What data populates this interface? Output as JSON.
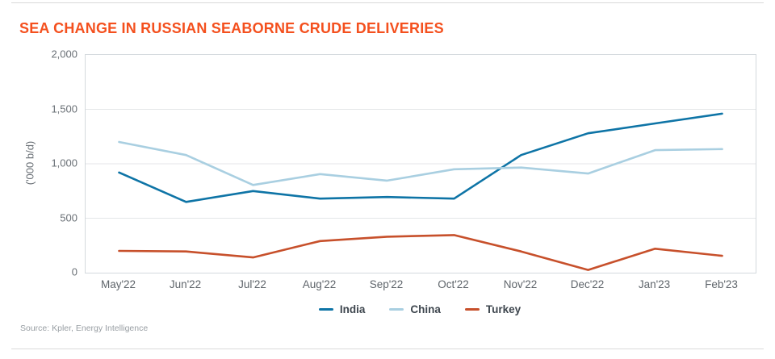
{
  "card": {
    "title": "SEA CHANGE IN RUSSIAN SEABORNE CRUDE DELIVERIES",
    "source": "Source: Kpler, Energy Intelligence"
  },
  "chart_data": {
    "type": "line",
    "title": "SEA CHANGE IN RUSSIAN SEABORNE CRUDE DELIVERIES",
    "xlabel": "",
    "ylabel": "('000 b/d)",
    "categories": [
      "May'22",
      "Jun'22",
      "Jul'22",
      "Aug'22",
      "Sep'22",
      "Oct'22",
      "Nov'22",
      "Dec'22",
      "Jan'23",
      "Feb'23"
    ],
    "series": [
      {
        "name": "India",
        "color": "#0e74a6",
        "values": [
          920,
          650,
          750,
          680,
          695,
          680,
          1080,
          1280,
          1370,
          1460
        ]
      },
      {
        "name": "China",
        "color": "#a9cfe1",
        "values": [
          1200,
          1080,
          805,
          905,
          845,
          950,
          965,
          910,
          1125,
          1135
        ]
      },
      {
        "name": "Turkey",
        "color": "#c7502b",
        "values": [
          200,
          195,
          140,
          290,
          330,
          345,
          195,
          25,
          220,
          155
        ]
      }
    ],
    "ylim": [
      0,
      2000
    ],
    "yticks": [
      0,
      500,
      1000,
      1500,
      2000
    ],
    "ytick_labels": [
      "0",
      "500",
      "1,000",
      "1,500",
      "2,000"
    ],
    "grid": "horizontal",
    "legend_position": "bottom"
  },
  "colors": {
    "title": "#f4501e",
    "axis_text": "#6a7076",
    "legend_text": "#3e464e",
    "gridline": "#e4e6e8",
    "plot_border": "#d4d9dd",
    "divider": "#d9d9d9"
  }
}
